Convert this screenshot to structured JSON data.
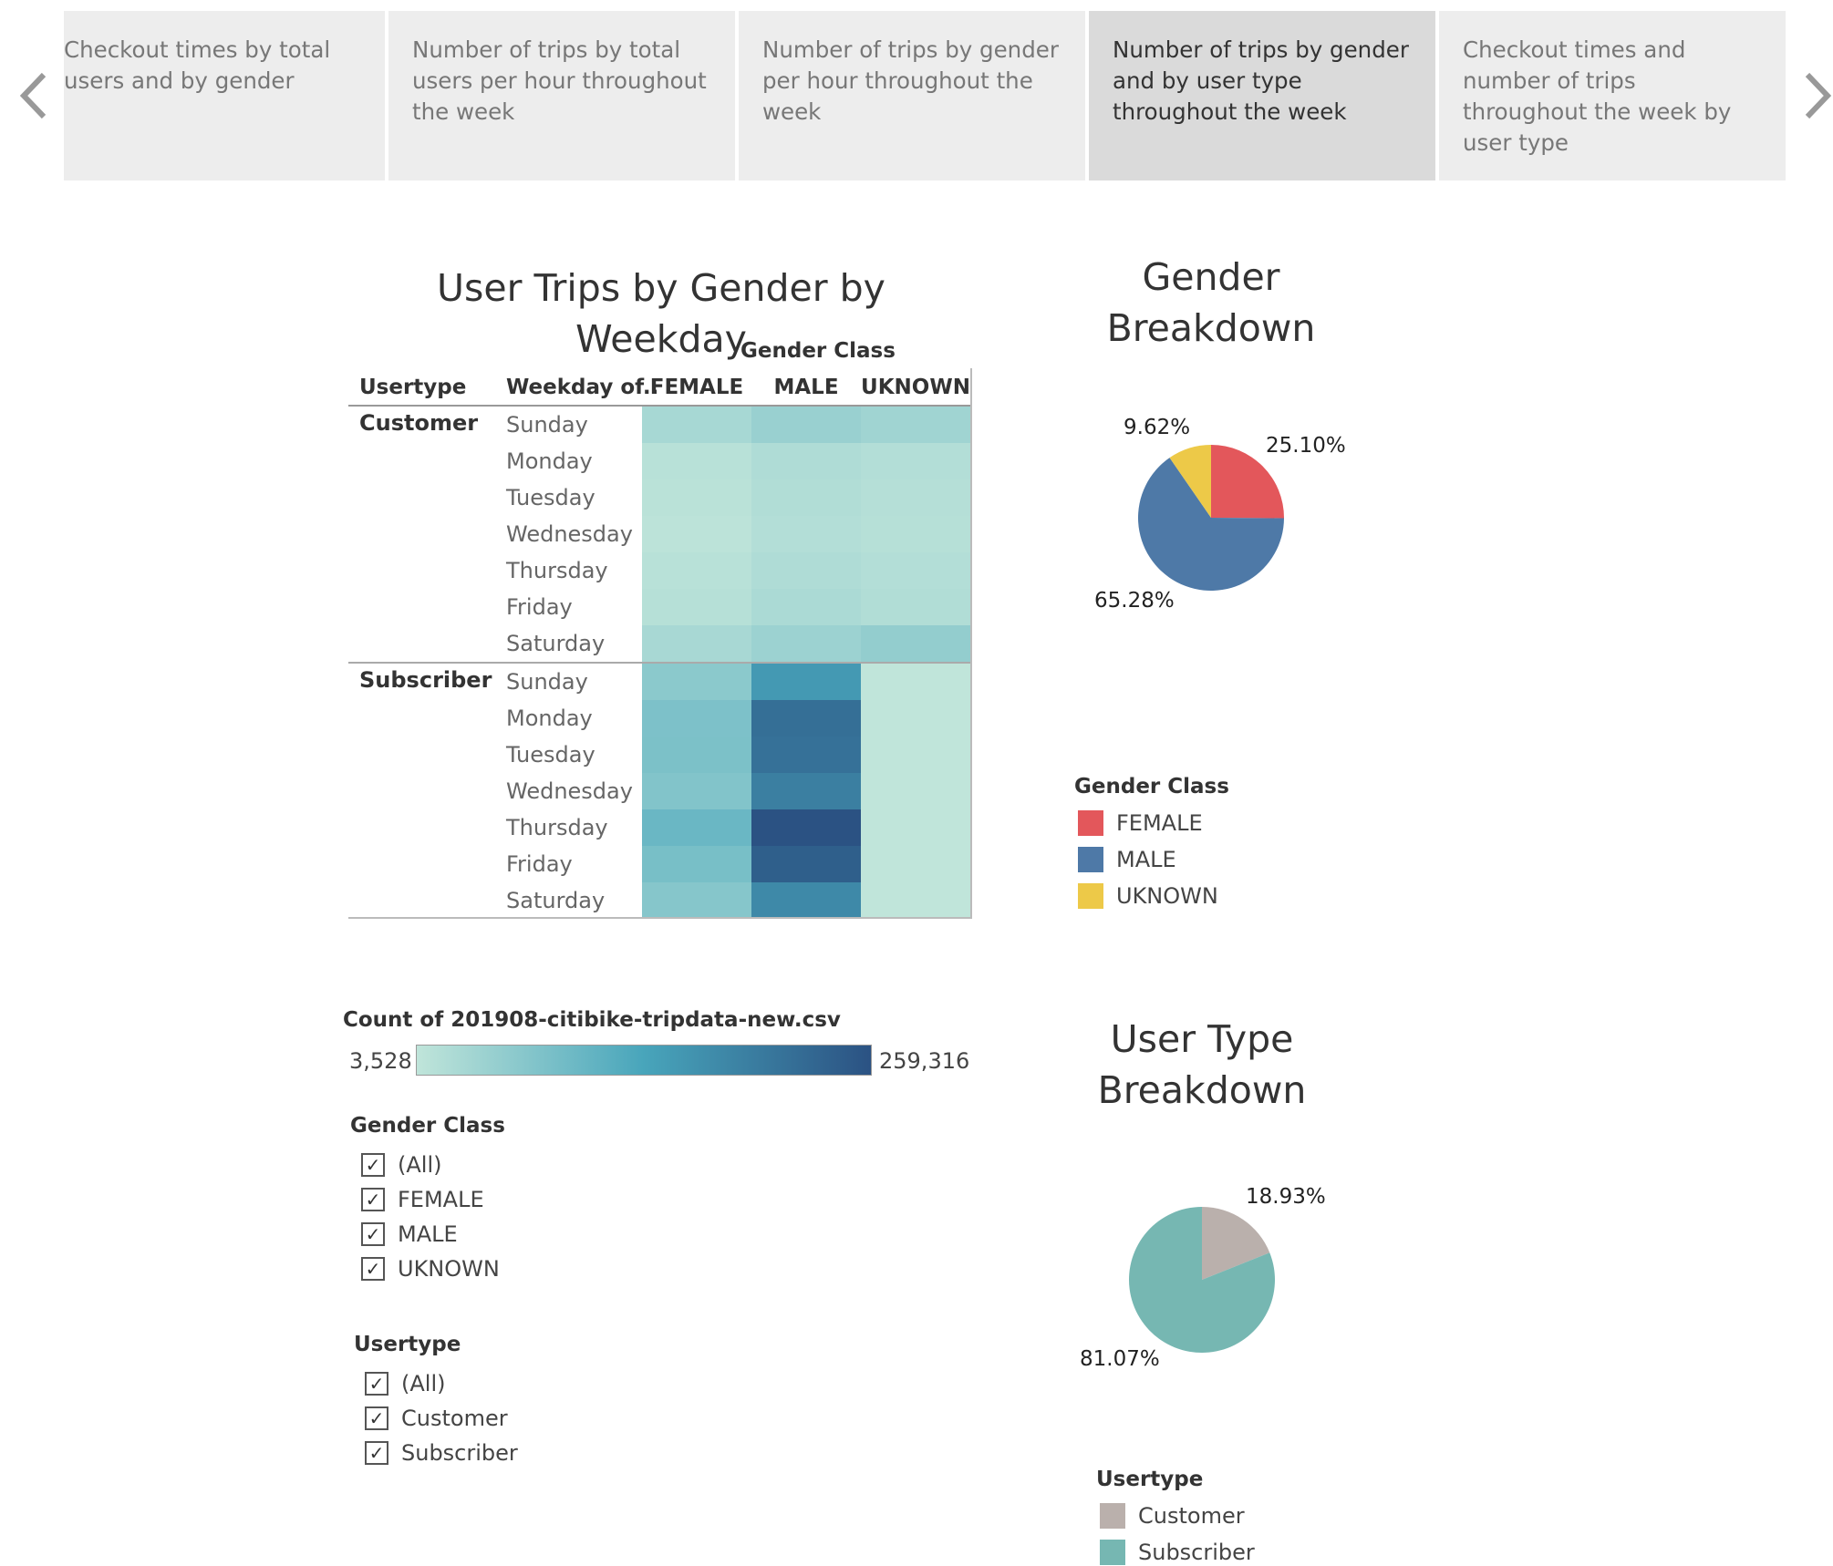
{
  "story_tabs": [
    {
      "label": "Checkout times by total users and by gender",
      "active": false
    },
    {
      "label": "Number of trips by total users per hour throughout the week",
      "active": false
    },
    {
      "label": "Number of trips by gender per hour throughout the week",
      "active": false
    },
    {
      "label": "Number of trips by gender and by user type throughout the week",
      "active": true
    },
    {
      "label": "Checkout times and number of trips throughout the week by user type",
      "active": false
    }
  ],
  "nav": {
    "prev_icon": "chevron-left-icon",
    "next_icon": "chevron-right-icon"
  },
  "heatmap": {
    "title": "User Trips by Gender by Weekday",
    "column_group_header": "Gender Class",
    "row_header_1": "Usertype",
    "row_header_2": "Weekday of..",
    "columns": [
      "FEMALE",
      "MALE",
      "UKNOWN"
    ],
    "groups": [
      {
        "label": "Customer",
        "rows": [
          "Sunday",
          "Monday",
          "Tuesday",
          "Wednesday",
          "Thursday",
          "Friday",
          "Saturday"
        ]
      },
      {
        "label": "Subscriber",
        "rows": [
          "Sunday",
          "Monday",
          "Tuesday",
          "Wednesday",
          "Thursday",
          "Friday",
          "Saturday"
        ]
      }
    ]
  },
  "chart_data": [
    {
      "type": "heatmap",
      "title": "User Trips by Gender by Weekday",
      "x_categories": [
        "FEMALE",
        "MALE",
        "UKNOWN"
      ],
      "y_categories": [
        "Customer Sunday",
        "Customer Monday",
        "Customer Tuesday",
        "Customer Wednesday",
        "Customer Thursday",
        "Customer Friday",
        "Customer Saturday",
        "Subscriber Sunday",
        "Subscriber Monday",
        "Subscriber Tuesday",
        "Subscriber Wednesday",
        "Subscriber Thursday",
        "Subscriber Friday",
        "Subscriber Saturday"
      ],
      "values": [
        [
          30000,
          45000,
          38000
        ],
        [
          12000,
          22000,
          17000
        ],
        [
          10000,
          19000,
          15000
        ],
        [
          8000,
          17000,
          14000
        ],
        [
          12000,
          22000,
          17000
        ],
        [
          14000,
          26000,
          19000
        ],
        [
          29000,
          42000,
          52000
        ],
        [
          60000,
          150000,
          3528
        ],
        [
          75000,
          215000,
          3600
        ],
        [
          76000,
          212000,
          3800
        ],
        [
          70000,
          190000,
          3700
        ],
        [
          95000,
          259316,
          4000
        ],
        [
          80000,
          240000,
          3900
        ],
        [
          65000,
          175000,
          3800
        ]
      ],
      "color_legend": {
        "title": "Count of 201908-citibike-tripdata-new.csv",
        "min": 3528,
        "max": 259316,
        "min_label": "3,528",
        "max_label": "259,316",
        "colors": [
          "#c0e5da",
          "#48a5bb",
          "#2b5283"
        ]
      }
    },
    {
      "type": "pie",
      "title": "Gender Breakdown",
      "legend_title": "Gender Class",
      "slices": [
        {
          "label": "FEMALE",
          "value": 25.1,
          "text": "25.10%",
          "color": "#e3575b"
        },
        {
          "label": "MALE",
          "value": 65.28,
          "text": "65.28%",
          "color": "#4e79a7"
        },
        {
          "label": "UKNOWN",
          "value": 9.62,
          "text": "9.62%",
          "color": "#edc948"
        }
      ]
    },
    {
      "type": "pie",
      "title": "User Type Breakdown",
      "legend_title": "Usertype",
      "slices": [
        {
          "label": "Customer",
          "value": 18.93,
          "text": "18.93%",
          "color": "#bab0ac"
        },
        {
          "label": "Subscriber",
          "value": 81.07,
          "text": "81.07%",
          "color": "#76b7b2"
        }
      ]
    }
  ],
  "color_legend": {
    "title": "Count of 201908-citibike-tripdata-new.csv",
    "min_label": "3,528",
    "max_label": "259,316"
  },
  "gender_pie": {
    "title_line1": "Gender",
    "title_line2": "Breakdown"
  },
  "usertype_pie": {
    "title_line1": "User Type",
    "title_line2": "Breakdown"
  },
  "gender_legend": {
    "title": "Gender Class",
    "items": [
      {
        "label": "FEMALE",
        "color": "#e3575b"
      },
      {
        "label": "MALE",
        "color": "#4e79a7"
      },
      {
        "label": "UKNOWN",
        "color": "#edc948"
      }
    ]
  },
  "usertype_legend": {
    "title": "Usertype",
    "items": [
      {
        "label": "Customer",
        "color": "#bab0ac"
      },
      {
        "label": "Subscriber",
        "color": "#76b7b2"
      }
    ]
  },
  "filter_gender": {
    "title": "Gender Class",
    "options": [
      {
        "label": "(All)",
        "checked": true
      },
      {
        "label": "FEMALE",
        "checked": true
      },
      {
        "label": "MALE",
        "checked": true
      },
      {
        "label": "UKNOWN",
        "checked": true
      }
    ]
  },
  "filter_usertype": {
    "title": "Usertype",
    "options": [
      {
        "label": "(All)",
        "checked": true
      },
      {
        "label": "Customer",
        "checked": true
      },
      {
        "label": "Subscriber",
        "checked": true
      }
    ]
  },
  "check_glyph": "✓"
}
